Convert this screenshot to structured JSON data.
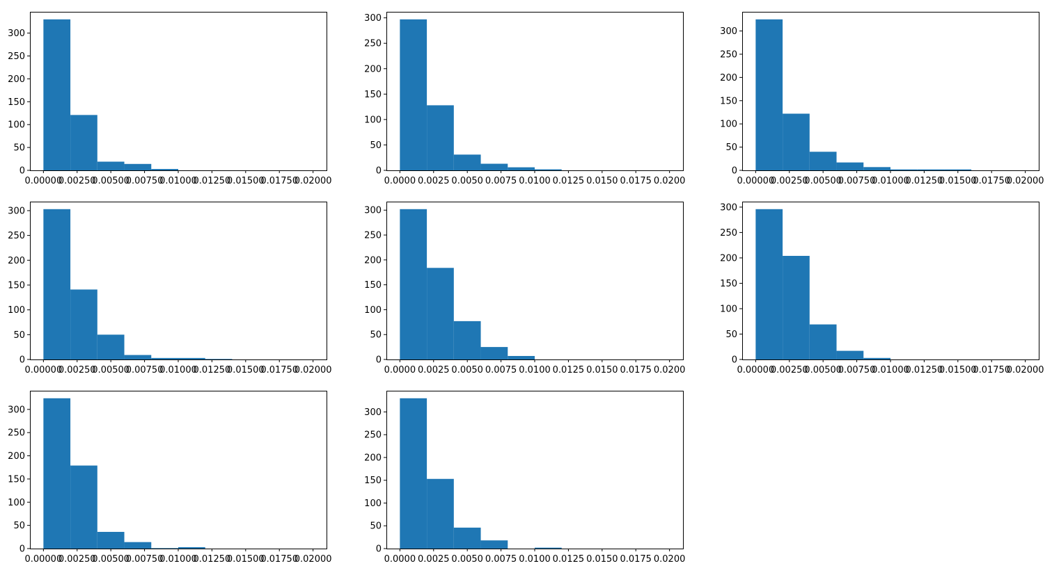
{
  "figure": {
    "bar_color": "#1f77b4",
    "background": "#ffffff",
    "rows": 3,
    "cols": 3
  },
  "chart_data": [
    {
      "type": "bar",
      "subplot": [
        1,
        1
      ],
      "bin_edges": [
        0.0,
        0.002,
        0.004,
        0.006,
        0.008,
        0.01,
        0.012,
        0.014,
        0.016,
        0.018,
        0.02
      ],
      "values": [
        330,
        121,
        19,
        14,
        3,
        0,
        0,
        0,
        0,
        0
      ],
      "xlim": [
        -0.001,
        0.021
      ],
      "ylim": [
        0,
        346.5
      ],
      "xticks": [
        0.0,
        0.0025,
        0.005,
        0.0075,
        0.01,
        0.0125,
        0.015,
        0.0175,
        0.02
      ],
      "xtick_labels": [
        "0.00000",
        "0.00250",
        "0.00500",
        "0.00750",
        "0.01000",
        "0.01250",
        "0.01500",
        "0.01750",
        "0.02000"
      ],
      "yticks": [
        0,
        50,
        100,
        150,
        200,
        250,
        300
      ],
      "ytick_labels": [
        "0",
        "50",
        "100",
        "150",
        "200",
        "250",
        "300"
      ],
      "grid": false
    },
    {
      "type": "bar",
      "subplot": [
        1,
        2
      ],
      "bin_edges": [
        0.0,
        0.002,
        0.004,
        0.006,
        0.008,
        0.01,
        0.012,
        0.014,
        0.016,
        0.018,
        0.02
      ],
      "values": [
        297,
        128,
        31,
        13,
        6,
        2,
        0,
        0,
        0,
        0
      ],
      "xlim": [
        -0.001,
        0.021
      ],
      "ylim": [
        0,
        311.85
      ],
      "xticks": [
        0.0,
        0.0025,
        0.005,
        0.0075,
        0.01,
        0.0125,
        0.015,
        0.0175,
        0.02
      ],
      "xtick_labels": [
        "0.0000",
        "0.0025",
        "0.0050",
        "0.0075",
        "0.0100",
        "0.0125",
        "0.0150",
        "0.0175",
        "0.0200"
      ],
      "yticks": [
        0,
        50,
        100,
        150,
        200,
        250,
        300
      ],
      "ytick_labels": [
        "0",
        "50",
        "100",
        "150",
        "200",
        "250",
        "300"
      ],
      "grid": false
    },
    {
      "type": "bar",
      "subplot": [
        1,
        3
      ],
      "bin_edges": [
        0.0,
        0.002,
        0.004,
        0.006,
        0.008,
        0.01,
        0.012,
        0.014,
        0.016,
        0.018,
        0.02
      ],
      "values": [
        325,
        122,
        40,
        17,
        7,
        2,
        2,
        2,
        0,
        0
      ],
      "xlim": [
        -0.001,
        0.021
      ],
      "ylim": [
        0,
        341.25
      ],
      "xticks": [
        0.0,
        0.0025,
        0.005,
        0.0075,
        0.01,
        0.0125,
        0.015,
        0.0175,
        0.02
      ],
      "xtick_labels": [
        "0.00000",
        "0.00250",
        "0.00500",
        "0.00750",
        "0.01000",
        "0.01250",
        "0.01500",
        "0.01750",
        "0.02000"
      ],
      "yticks": [
        0,
        50,
        100,
        150,
        200,
        250,
        300
      ],
      "ytick_labels": [
        "0",
        "50",
        "100",
        "150",
        "200",
        "250",
        "300"
      ],
      "grid": false
    },
    {
      "type": "bar",
      "subplot": [
        2,
        1
      ],
      "bin_edges": [
        0.0,
        0.002,
        0.004,
        0.006,
        0.008,
        0.01,
        0.012,
        0.014,
        0.016,
        0.018,
        0.02
      ],
      "values": [
        303,
        141,
        50,
        9,
        3,
        3,
        1,
        0,
        0,
        0
      ],
      "xlim": [
        -0.001,
        0.021
      ],
      "ylim": [
        0,
        318.15
      ],
      "xticks": [
        0.0,
        0.0025,
        0.005,
        0.0075,
        0.01,
        0.0125,
        0.015,
        0.0175,
        0.02
      ],
      "xtick_labels": [
        "0.00000",
        "0.00250",
        "0.00500",
        "0.00750",
        "0.01000",
        "0.01250",
        "0.01500",
        "0.01750",
        "0.02000"
      ],
      "yticks": [
        0,
        50,
        100,
        150,
        200,
        250,
        300
      ],
      "ytick_labels": [
        "0",
        "50",
        "100",
        "150",
        "200",
        "250",
        "300"
      ],
      "grid": false
    },
    {
      "type": "bar",
      "subplot": [
        2,
        2
      ],
      "bin_edges": [
        0.0,
        0.002,
        0.004,
        0.006,
        0.008,
        0.01,
        0.012,
        0.014,
        0.016,
        0.018,
        0.02
      ],
      "values": [
        302,
        184,
        77,
        25,
        7,
        0,
        0,
        0,
        0,
        0
      ],
      "xlim": [
        -0.001,
        0.021
      ],
      "ylim": [
        0,
        317.1
      ],
      "xticks": [
        0.0,
        0.0025,
        0.005,
        0.0075,
        0.01,
        0.0125,
        0.015,
        0.0175,
        0.02
      ],
      "xtick_labels": [
        "0.0000",
        "0.0025",
        "0.0050",
        "0.0075",
        "0.0100",
        "0.0125",
        "0.0150",
        "0.0175",
        "0.0200"
      ],
      "yticks": [
        0,
        50,
        100,
        150,
        200,
        250,
        300
      ],
      "ytick_labels": [
        "0",
        "50",
        "100",
        "150",
        "200",
        "250",
        "300"
      ],
      "grid": false
    },
    {
      "type": "bar",
      "subplot": [
        2,
        3
      ],
      "bin_edges": [
        0.0,
        0.002,
        0.004,
        0.006,
        0.008,
        0.01,
        0.012,
        0.014,
        0.016,
        0.018,
        0.02
      ],
      "values": [
        296,
        204,
        69,
        17,
        3,
        0,
        0,
        0,
        0,
        0
      ],
      "xlim": [
        -0.001,
        0.021
      ],
      "ylim": [
        0,
        310.8
      ],
      "xticks": [
        0.0,
        0.0025,
        0.005,
        0.0075,
        0.01,
        0.0125,
        0.015,
        0.0175,
        0.02
      ],
      "xtick_labels": [
        "0.00000",
        "0.00250",
        "0.00500",
        "0.00750",
        "0.01000",
        "0.01250",
        "0.01500",
        "0.01750",
        "0.02000"
      ],
      "yticks": [
        0,
        50,
        100,
        150,
        200,
        250,
        300
      ],
      "ytick_labels": [
        "0",
        "50",
        "100",
        "150",
        "200",
        "250",
        "300"
      ],
      "grid": false
    },
    {
      "type": "bar",
      "subplot": [
        3,
        1
      ],
      "bin_edges": [
        0.0,
        0.002,
        0.004,
        0.006,
        0.008,
        0.01,
        0.012,
        0.014,
        0.016,
        0.018,
        0.02
      ],
      "values": [
        324,
        179,
        36,
        14,
        1,
        3,
        0,
        0,
        0,
        0
      ],
      "xlim": [
        -0.001,
        0.021
      ],
      "ylim": [
        0,
        340.2
      ],
      "xticks": [
        0.0,
        0.0025,
        0.005,
        0.0075,
        0.01,
        0.0125,
        0.015,
        0.0175,
        0.02
      ],
      "xtick_labels": [
        "0.00000",
        "0.00250",
        "0.00500",
        "0.00750",
        "0.01000",
        "0.01250",
        "0.01500",
        "0.01750",
        "0.02000"
      ],
      "yticks": [
        0,
        50,
        100,
        150,
        200,
        250,
        300
      ],
      "ytick_labels": [
        "0",
        "50",
        "100",
        "150",
        "200",
        "250",
        "300"
      ],
      "grid": false
    },
    {
      "type": "bar",
      "subplot": [
        3,
        2
      ],
      "bin_edges": [
        0.0,
        0.002,
        0.004,
        0.006,
        0.008,
        0.01,
        0.012,
        0.014,
        0.016,
        0.018,
        0.02
      ],
      "values": [
        330,
        153,
        46,
        18,
        0,
        2,
        0,
        0,
        0,
        0
      ],
      "xlim": [
        -0.001,
        0.021
      ],
      "ylim": [
        0,
        346.5
      ],
      "xticks": [
        0.0,
        0.0025,
        0.005,
        0.0075,
        0.01,
        0.0125,
        0.015,
        0.0175,
        0.02
      ],
      "xtick_labels": [
        "0.0000",
        "0.0025",
        "0.0050",
        "0.0075",
        "0.0100",
        "0.0125",
        "0.0150",
        "0.0175",
        "0.0200"
      ],
      "yticks": [
        0,
        50,
        100,
        150,
        200,
        250,
        300
      ],
      "ytick_labels": [
        "0",
        "50",
        "100",
        "150",
        "200",
        "250",
        "300"
      ],
      "grid": false
    }
  ]
}
